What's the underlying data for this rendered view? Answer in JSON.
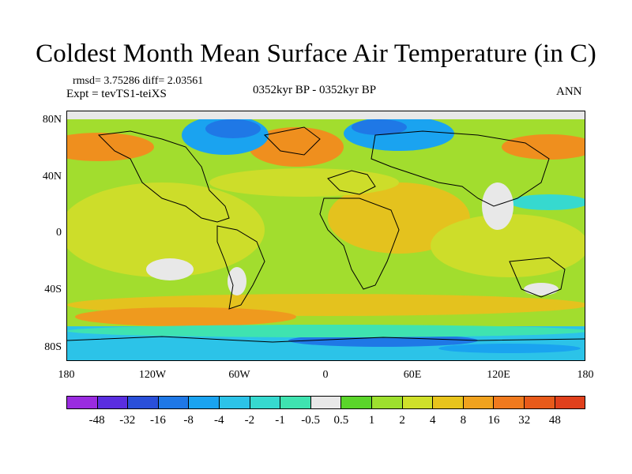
{
  "chart_data": {
    "type": "heatmap",
    "title": "Coldest Month Mean Surface Air Temperature (in C)",
    "stats_text": "rmsd= 3.75286 diff= 2.03561",
    "experiment_text": "Expt = tevTS1-teiXS",
    "center_subtitle": "0352kyr BP - 0352kyr BP",
    "right_subtitle": "ANN",
    "x_ticks": [
      "180",
      "120W",
      "60W",
      "0",
      "60E",
      "120E",
      "180"
    ],
    "y_ticks": [
      "80N",
      "40N",
      "0",
      "40S",
      "80S"
    ],
    "xlim": [
      -180,
      180
    ],
    "ylim": [
      -90,
      90
    ],
    "colorbar": {
      "labels": [
        "-48",
        "-32",
        "-16",
        "-8",
        "-4",
        "-2",
        "-1",
        "-0.5",
        "0.5",
        "1",
        "2",
        "4",
        "8",
        "16",
        "32",
        "48"
      ],
      "colors": [
        "#9a2be0",
        "#5a2ee0",
        "#2a4fd9",
        "#1f78e6",
        "#1aa3f0",
        "#2cc3e8",
        "#36d9cf",
        "#3fe3b0",
        "#e8e8e8",
        "#5ad52a",
        "#9de02e",
        "#cfe02a",
        "#e8c41c",
        "#f0a21e",
        "#f07a1e",
        "#e85a1a",
        "#e0401c"
      ]
    }
  }
}
